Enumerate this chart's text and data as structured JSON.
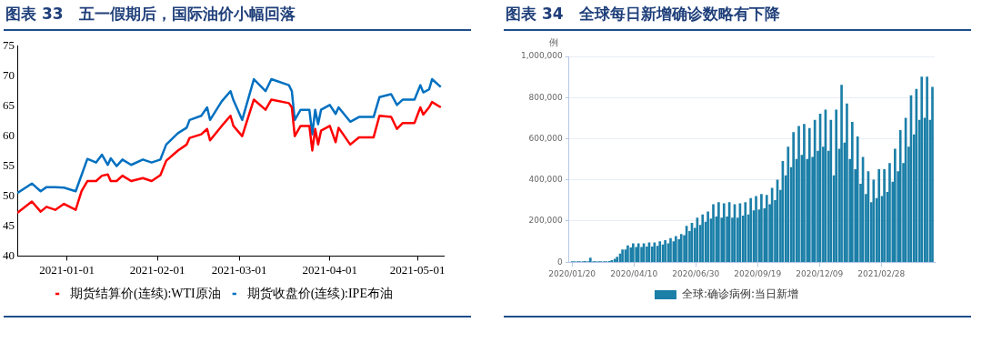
{
  "chart_data": [
    {
      "type": "line",
      "title": "图表 33　五一假期后，国际油价小幅回落",
      "legend": "bottom",
      "marker": "none",
      "line_style": "solid",
      "grid": false,
      "x": [
        "2020-12-15",
        "2020-12-20",
        "2020-12-23",
        "2020-12-25",
        "2020-12-28",
        "2020-12-31",
        "2021-01-04",
        "2021-01-06",
        "2021-01-08",
        "2021-01-11",
        "2021-01-13",
        "2021-01-15",
        "2021-01-16",
        "2021-01-18",
        "2021-01-20",
        "2021-01-23",
        "2021-01-27",
        "2021-01-30",
        "2021-02-02",
        "2021-02-04",
        "2021-02-08",
        "2021-02-11",
        "2021-02-12",
        "2021-02-16",
        "2021-02-18",
        "2021-02-19",
        "2021-02-23",
        "2021-02-26",
        "2021-02-27",
        "2021-03-02",
        "2021-03-06",
        "2021-03-10",
        "2021-03-12",
        "2021-03-18",
        "2021-03-19",
        "2021-03-20",
        "2021-03-22",
        "2021-03-25",
        "2021-03-26",
        "2021-03-27",
        "2021-03-28",
        "2021-03-29",
        "2021-04-01",
        "2021-04-03",
        "2021-04-04",
        "2021-04-08",
        "2021-04-11",
        "2021-04-16",
        "2021-04-18",
        "2021-04-22",
        "2021-04-24",
        "2021-04-26",
        "2021-04-30",
        "2021-05-02",
        "2021-05-03",
        "2021-05-05",
        "2021-05-06",
        "2021-05-09"
      ],
      "series": [
        {
          "name": "期货结算价(连续):WTI原油",
          "color": "#ff0000",
          "values": [
            47.2,
            49.1,
            47.4,
            48.2,
            47.7,
            48.7,
            47.7,
            50.8,
            52.5,
            52.5,
            53.4,
            53.6,
            52.5,
            52.5,
            53.4,
            52.5,
            53.0,
            52.5,
            53.5,
            55.9,
            57.6,
            58.6,
            59.7,
            60.3,
            61.2,
            59.3,
            61.7,
            63.4,
            61.7,
            60.0,
            66.1,
            64.4,
            66.1,
            65.5,
            64.8,
            60.0,
            61.7,
            61.7,
            57.6,
            61.2,
            58.6,
            60.9,
            61.7,
            59.0,
            61.4,
            58.6,
            59.8,
            59.8,
            63.4,
            63.2,
            61.2,
            62.2,
            62.2,
            64.8,
            63.6,
            64.8,
            65.7,
            64.8
          ]
        },
        {
          "name": "期货收盘价(连续):IPE布油",
          "color": "#0070c0",
          "values": [
            50.5,
            52.1,
            50.8,
            51.5,
            51.5,
            51.4,
            50.8,
            53.5,
            56.2,
            55.6,
            56.9,
            55.2,
            56.3,
            55.0,
            56.1,
            55.2,
            56.1,
            55.6,
            56.1,
            58.6,
            60.5,
            61.4,
            62.7,
            63.4,
            64.8,
            62.7,
            65.8,
            67.5,
            66.0,
            62.7,
            69.5,
            67.5,
            69.5,
            68.5,
            67.5,
            62.7,
            64.4,
            64.4,
            60.3,
            64.4,
            62.0,
            64.4,
            65.2,
            63.7,
            64.8,
            62.4,
            63.2,
            63.2,
            66.5,
            67.0,
            65.2,
            66.1,
            66.1,
            68.5,
            67.3,
            67.8,
            69.5,
            68.2
          ]
        }
      ],
      "xlim": [
        "2020-12-15",
        "2021-05-10"
      ],
      "xticks": [
        "2021-01-01",
        "2021-02-01",
        "2021-03-01",
        "2021-04-01",
        "2021-05-01"
      ],
      "ylim": [
        40,
        75
      ],
      "yticks": [
        40,
        45,
        50,
        55,
        60,
        65,
        70,
        75
      ]
    },
    {
      "type": "bar",
      "title": "图表 34　全球每日新增确诊数略有下降",
      "ylabel": "例",
      "legend": "bottom",
      "grid": "y",
      "x": [
        "2020-01-20",
        "2020-01-23",
        "2020-01-27",
        "2020-01-30",
        "2020-02-03",
        "2020-02-06",
        "2020-02-10",
        "2020-02-13",
        "2020-02-17",
        "2020-02-20",
        "2020-02-24",
        "2020-02-27",
        "2020-03-02",
        "2020-03-05",
        "2020-03-09",
        "2020-03-12",
        "2020-03-16",
        "2020-03-19",
        "2020-03-23",
        "2020-03-26",
        "2020-03-30",
        "2020-04-02",
        "2020-04-06",
        "2020-04-09",
        "2020-04-13",
        "2020-04-16",
        "2020-04-20",
        "2020-04-23",
        "2020-04-27",
        "2020-04-30",
        "2020-05-04",
        "2020-05-07",
        "2020-05-11",
        "2020-05-14",
        "2020-05-18",
        "2020-05-21",
        "2020-05-25",
        "2020-05-28",
        "2020-06-01",
        "2020-06-04",
        "2020-06-08",
        "2020-06-11",
        "2020-06-15",
        "2020-06-18",
        "2020-06-22",
        "2020-06-25",
        "2020-06-29",
        "2020-07-02",
        "2020-07-06",
        "2020-07-09",
        "2020-07-13",
        "2020-07-16",
        "2020-07-20",
        "2020-07-23",
        "2020-07-27",
        "2020-07-30",
        "2020-08-03",
        "2020-08-06",
        "2020-08-10",
        "2020-08-13",
        "2020-08-17",
        "2020-08-20",
        "2020-08-24",
        "2020-08-27",
        "2020-08-31",
        "2020-09-03",
        "2020-09-07",
        "2020-09-10",
        "2020-09-14",
        "2020-09-17",
        "2020-09-21",
        "2020-09-24",
        "2020-09-28",
        "2020-10-01",
        "2020-10-05",
        "2020-10-08",
        "2020-10-12",
        "2020-10-15",
        "2020-10-19",
        "2020-10-22",
        "2020-10-26",
        "2020-10-29",
        "2020-11-02",
        "2020-11-05",
        "2020-11-09",
        "2020-11-12",
        "2020-11-16",
        "2020-11-19",
        "2020-11-23",
        "2020-11-26",
        "2020-11-30",
        "2020-12-03",
        "2020-12-07",
        "2020-12-10",
        "2020-12-14",
        "2020-12-17",
        "2020-12-21",
        "2020-12-24",
        "2020-12-28",
        "2020-12-31",
        "2021-01-04",
        "2021-01-07",
        "2021-01-11",
        "2021-01-14",
        "2021-01-18",
        "2021-01-21",
        "2021-01-25",
        "2021-01-28",
        "2021-02-01",
        "2021-02-04",
        "2021-02-08",
        "2021-02-11",
        "2021-02-15",
        "2021-02-18",
        "2021-02-22",
        "2021-02-25",
        "2021-03-01",
        "2021-03-04",
        "2021-03-08",
        "2021-03-11",
        "2021-03-15",
        "2021-03-18",
        "2021-03-22",
        "2021-03-25",
        "2021-03-29",
        "2021-04-01",
        "2021-04-05",
        "2021-04-08",
        "2021-04-12",
        "2021-04-15",
        "2021-04-19",
        "2021-04-22",
        "2021-04-26",
        "2021-04-29",
        "2021-05-03",
        "2021-05-06"
      ],
      "series": [
        {
          "name": "全球:确诊病例:当日新增",
          "color": "#1b7fa8",
          "values": [
            1000,
            2000,
            2000,
            3000,
            3000,
            4000,
            3000,
            20000,
            1000,
            1000,
            1000,
            2000,
            2000,
            3000,
            4000,
            8000,
            15000,
            25000,
            40000,
            60000,
            60000,
            80000,
            70000,
            90000,
            72000,
            90000,
            72000,
            90000,
            75000,
            95000,
            75000,
            95000,
            78000,
            100000,
            85000,
            105000,
            90000,
            115000,
            100000,
            125000,
            110000,
            135000,
            130000,
            175000,
            150000,
            190000,
            165000,
            215000,
            180000,
            230000,
            195000,
            245000,
            210000,
            280000,
            220000,
            290000,
            215000,
            285000,
            220000,
            290000,
            215000,
            280000,
            215000,
            285000,
            225000,
            290000,
            230000,
            310000,
            250000,
            320000,
            255000,
            330000,
            260000,
            325000,
            280000,
            360000,
            300000,
            400000,
            350000,
            490000,
            420000,
            560000,
            460000,
            630000,
            500000,
            660000,
            520000,
            670000,
            500000,
            650000,
            510000,
            690000,
            540000,
            720000,
            560000,
            740000,
            540000,
            690000,
            420000,
            740000,
            550000,
            860000,
            580000,
            770000,
            500000,
            680000,
            450000,
            610000,
            380000,
            510000,
            330000,
            440000,
            290000,
            400000,
            310000,
            450000,
            320000,
            450000,
            340000,
            480000,
            390000,
            550000,
            440000,
            640000,
            480000,
            700000,
            560000,
            810000,
            620000,
            840000,
            690000,
            900000,
            700000,
            900000,
            690000,
            850000
          ]
        }
      ],
      "xlim": [
        "2020-01-16",
        "2021-05-09"
      ],
      "xticks": [
        {
          "value": "2020-01-20",
          "label": "2020/01/20"
        },
        {
          "value": "2020-04-10",
          "label": "2020/04/10"
        },
        {
          "value": "2020-06-30",
          "label": "2020/06/30"
        },
        {
          "value": "2020-09-19",
          "label": "2020/09/19"
        },
        {
          "value": "2020-12-09",
          "label": "2020/12/09"
        },
        {
          "value": "2021-02-28",
          "label": "2021/02/28"
        }
      ],
      "ylim": [
        0,
        1000000
      ],
      "yticks": [
        0,
        {
          "value": 200000,
          "label": "200,000"
        },
        {
          "value": 400000,
          "label": "400,000"
        },
        {
          "value": 600000,
          "label": "600,000"
        },
        {
          "value": 800000,
          "label": "800,000"
        },
        {
          "value": 1000000,
          "label": "1,000,000"
        }
      ]
    }
  ]
}
